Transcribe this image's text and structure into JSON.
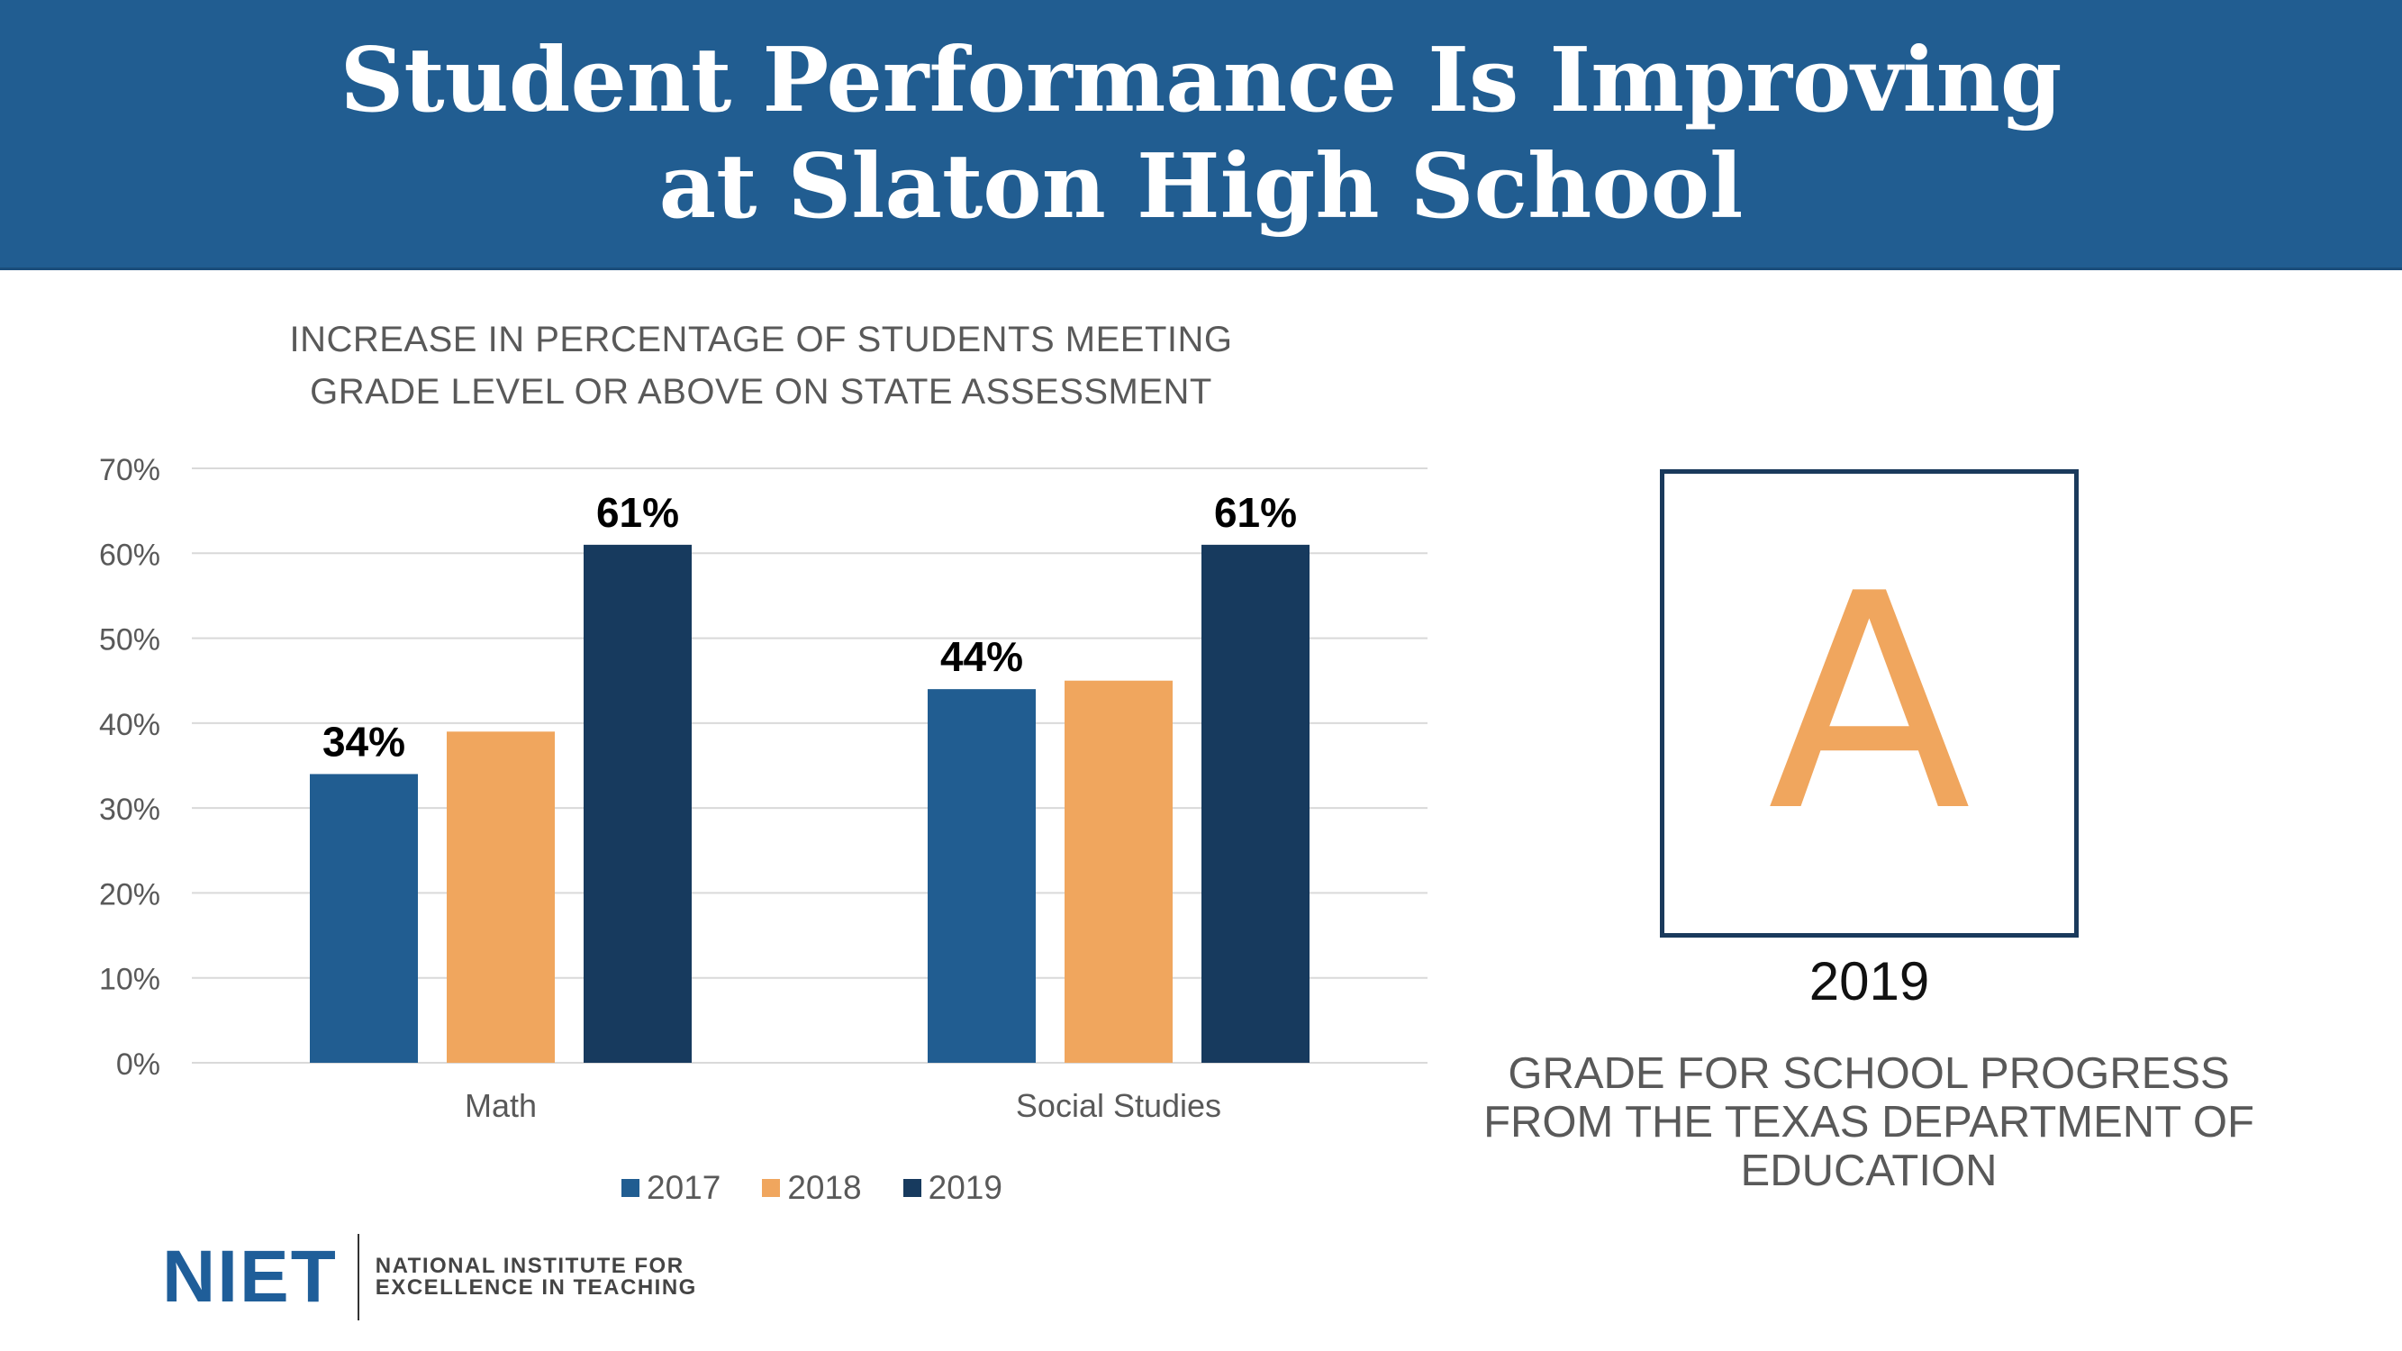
{
  "header": {
    "title": "Student Performance Is Improving at Slaton High School"
  },
  "chart_data": {
    "type": "bar",
    "title": "INCREASE IN PERCENTAGE OF STUDENTS MEETING GRADE LEVEL OR ABOVE ON STATE ASSESSMENT",
    "categories": [
      "Math",
      "Social Studies"
    ],
    "series": [
      {
        "name": "2017",
        "color": "#215d91",
        "values": [
          34,
          44
        ],
        "labels": [
          "34%",
          "44%"
        ]
      },
      {
        "name": "2018",
        "color": "#f0a65e",
        "values": [
          39,
          45
        ],
        "labels": [
          "",
          ""
        ]
      },
      {
        "name": "2019",
        "color": "#173a5e",
        "values": [
          61,
          61
        ],
        "labels": [
          "61%",
          "61%"
        ]
      }
    ],
    "ylim": [
      0,
      70
    ],
    "yticks": [
      0,
      10,
      20,
      30,
      40,
      50,
      60,
      70
    ],
    "ytick_labels": [
      "0%",
      "10%",
      "20%",
      "30%",
      "40%",
      "50%",
      "60%",
      "70%"
    ],
    "grid": true,
    "legend_position": "bottom"
  },
  "grade": {
    "letter": "A",
    "year": "2019",
    "caption": "GRADE FOR SCHOOL PROGRESS FROM THE TEXAS DEPARTMENT OF EDUCATION",
    "accent_color": "#f0a65e"
  },
  "logo": {
    "mark": "NIET",
    "line1": "NATIONAL INSTITUTE FOR",
    "line2": "EXCELLENCE IN TEACHING"
  }
}
